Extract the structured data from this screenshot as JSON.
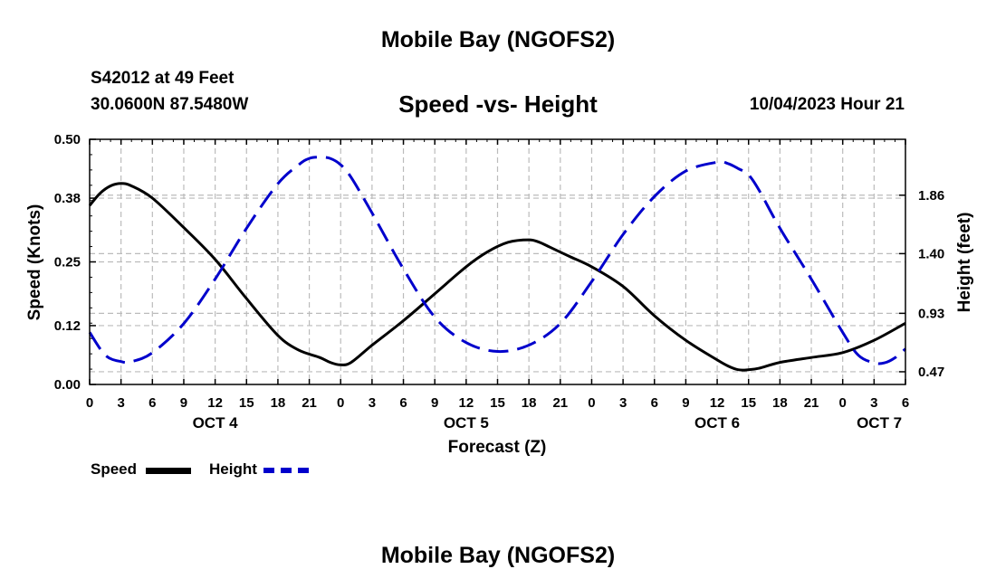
{
  "header": {
    "title": "Mobile Bay (NGOFS2)",
    "station": "S42012 at 49 Feet",
    "coords": "30.0600N  87.5480W",
    "subtitle": "Speed -vs- Height",
    "datetime": "10/04/2023 Hour 21",
    "footer_title": "Mobile Bay (NGOFS2)"
  },
  "legend": {
    "speed_label": "Speed",
    "height_label": "Height"
  },
  "colors": {
    "speed": "#000000",
    "height": "#0000cc",
    "grid": "#bbbbbb"
  },
  "chart_data": {
    "type": "line",
    "title": "Speed -vs- Height",
    "xlabel": "Forecast (Z)",
    "ylabel": "Speed (Knots)",
    "y2label": "Height (feet)",
    "xlim": [
      0,
      78
    ],
    "ylim": [
      0,
      0.5
    ],
    "y2lim": [
      0.37,
      2.3
    ],
    "x_ticks": [
      0,
      3,
      6,
      9,
      12,
      15,
      18,
      21,
      24,
      27,
      30,
      33,
      36,
      39,
      42,
      45,
      48,
      51,
      54,
      57,
      60,
      63,
      66,
      69,
      72,
      75,
      78
    ],
    "x_tick_labels": [
      "0",
      "3",
      "6",
      "9",
      "12",
      "15",
      "18",
      "21",
      "0",
      "3",
      "6",
      "9",
      "12",
      "15",
      "18",
      "21",
      "0",
      "3",
      "6",
      "9",
      "12",
      "15",
      "18",
      "21",
      "0",
      "3",
      "6"
    ],
    "date_labels": [
      {
        "x": 12,
        "label": "OCT 4"
      },
      {
        "x": 36,
        "label": "OCT 5"
      },
      {
        "x": 60,
        "label": "OCT 6"
      },
      {
        "x": 75.5,
        "label": "OCT 7"
      }
    ],
    "y_ticks": [
      0,
      0.12,
      0.25,
      0.38,
      0.5
    ],
    "y_tick_labels": [
      "0.00",
      "0.12",
      "0.25",
      "0.38",
      "0.50"
    ],
    "y2_ticks": [
      0.47,
      0.93,
      1.4,
      1.86
    ],
    "y2_tick_labels": [
      "0.47",
      "0.93",
      "1.40",
      "1.86"
    ],
    "series": [
      {
        "name": "Speed",
        "axis": "left",
        "style": "solid",
        "x": [
          0,
          1,
          2,
          3,
          4,
          6,
          9,
          12,
          15,
          18,
          20,
          22,
          23,
          24,
          25,
          27,
          30,
          33,
          36,
          38,
          40,
          42,
          43,
          44,
          45,
          46,
          48,
          51,
          54,
          57,
          60,
          61,
          62,
          63,
          64,
          66,
          69,
          72,
          75,
          78
        ],
        "values": [
          0.365,
          0.39,
          0.405,
          0.41,
          0.405,
          0.38,
          0.32,
          0.255,
          0.175,
          0.1,
          0.07,
          0.055,
          0.045,
          0.04,
          0.045,
          0.08,
          0.13,
          0.185,
          0.24,
          0.27,
          0.29,
          0.295,
          0.29,
          0.28,
          0.27,
          0.26,
          0.24,
          0.2,
          0.14,
          0.09,
          0.05,
          0.038,
          0.03,
          0.03,
          0.033,
          0.045,
          0.055,
          0.065,
          0.09,
          0.125
        ]
      },
      {
        "name": "Height",
        "axis": "right",
        "style": "dashed",
        "x": [
          0,
          1.5,
          3,
          4,
          6,
          9,
          12,
          15,
          18,
          20,
          21,
          22,
          23,
          24,
          25,
          27,
          30,
          33,
          36,
          39,
          42,
          45,
          48,
          51,
          54,
          57,
          60,
          61,
          62,
          63,
          64,
          66,
          69,
          72,
          73.5,
          75,
          76,
          77,
          78
        ],
        "values": [
          0.78,
          0.6,
          0.55,
          0.55,
          0.62,
          0.85,
          1.2,
          1.6,
          1.95,
          2.1,
          2.15,
          2.16,
          2.15,
          2.1,
          2.0,
          1.72,
          1.28,
          0.9,
          0.7,
          0.63,
          0.68,
          0.85,
          1.18,
          1.55,
          1.85,
          2.05,
          2.12,
          2.11,
          2.07,
          2.02,
          1.9,
          1.6,
          1.2,
          0.78,
          0.6,
          0.54,
          0.54,
          0.58,
          0.65
        ]
      }
    ]
  }
}
